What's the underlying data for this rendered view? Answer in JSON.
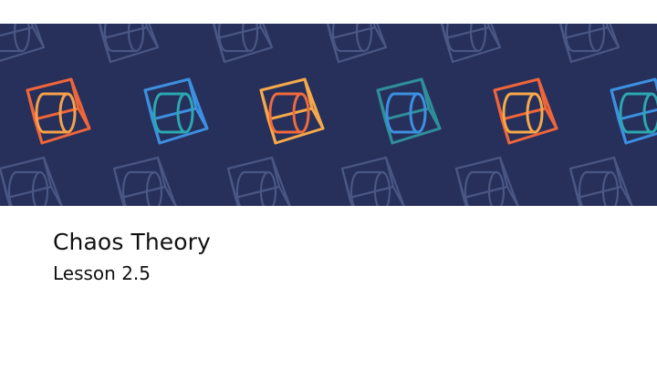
{
  "slide": {
    "title": "Chaos Theory",
    "subtitle": "Lesson 2.5"
  },
  "banner": {
    "background_color": "#26305b",
    "faint_icon_color": "#4a5684",
    "icon": "cube-cylinder-outline-icon",
    "bright_icons": [
      {
        "primary": "#f0653a",
        "secondary": "#f6a14a"
      },
      {
        "primary": "#3d8fe0",
        "secondary": "#2ca7b0"
      },
      {
        "primary": "#f6a94a",
        "secondary": "#f06a3c"
      },
      {
        "primary": "#2f8f99",
        "secondary": "#3d8fe0"
      },
      {
        "primary": "#f0653a",
        "secondary": "#f6a94a"
      },
      {
        "primary": "#3d8fe0",
        "secondary": "#2ca7b0"
      }
    ]
  }
}
